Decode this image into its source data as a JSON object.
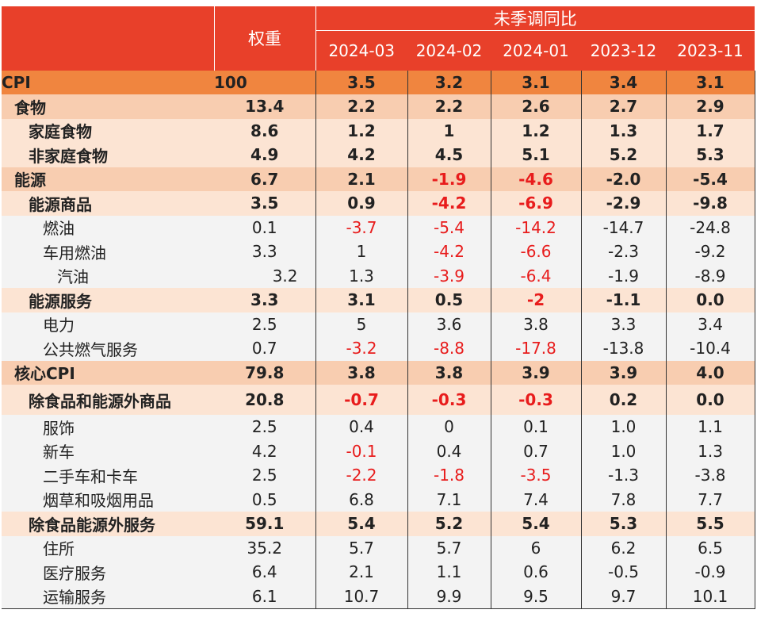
{
  "header": {
    "weight_label": "权重",
    "group_label": "未季调同比",
    "dates": [
      "2024-03",
      "2024-02",
      "2024-01",
      "2023-12",
      "2023-11"
    ]
  },
  "rows": [
    {
      "label": "CPI",
      "level": 0,
      "weight": "100",
      "values": [
        "3.5",
        "3.2",
        "3.1",
        "3.4",
        "3.1"
      ]
    },
    {
      "label": "食物",
      "level": 1,
      "weight": "13.4",
      "values": [
        "2.2",
        "2.2",
        "2.6",
        "2.7",
        "2.9"
      ]
    },
    {
      "label": "家庭食物",
      "level": 2,
      "weight": "8.6",
      "values": [
        "1.2",
        "1",
        "1.2",
        "1.3",
        "1.7"
      ]
    },
    {
      "label": "非家庭食物",
      "level": 2,
      "weight": "4.9",
      "values": [
        "4.2",
        "4.5",
        "5.1",
        "5.2",
        "5.3"
      ]
    },
    {
      "label": "能源",
      "level": 1,
      "weight": "6.7",
      "values": [
        "2.1",
        "-1.9",
        "-4.6",
        "-2.0",
        "-5.4"
      ]
    },
    {
      "label": "能源商品",
      "level": 2,
      "weight": "3.5",
      "values": [
        "0.9",
        "-4.2",
        "-6.9",
        "-2.9",
        "-9.8"
      ]
    },
    {
      "label": "燃油",
      "level": 3,
      "weight": "0.1",
      "values": [
        "-3.7",
        "-5.4",
        "-14.2",
        "-14.7",
        "-24.8"
      ]
    },
    {
      "label": "车用燃油",
      "level": 3,
      "weight": "3.3",
      "values": [
        "1",
        "-4.2",
        "-6.6",
        "-2.3",
        "-9.2"
      ]
    },
    {
      "label": "汽油",
      "level": 4,
      "weight": "3.2",
      "values": [
        "1.3",
        "-3.9",
        "-6.4",
        "-1.9",
        "-8.9"
      ]
    },
    {
      "label": "能源服务",
      "level": 2,
      "weight": "3.3",
      "values": [
        "3.1",
        "0.5",
        "-2",
        "-1.1",
        "0.0"
      ]
    },
    {
      "label": "电力",
      "level": 3,
      "weight": "2.5",
      "values": [
        "5",
        "3.6",
        "3.8",
        "3.3",
        "3.4"
      ]
    },
    {
      "label": "公共燃气服务",
      "level": 3,
      "weight": "0.7",
      "values": [
        "-3.2",
        "-8.8",
        "-17.8",
        "-13.8",
        "-10.4"
      ]
    },
    {
      "label": "核心CPI",
      "level": 1,
      "weight": "79.8",
      "values": [
        "3.8",
        "3.8",
        "3.9",
        "3.9",
        "4.0"
      ]
    },
    {
      "label": "除食品和能源外商品",
      "level": 2,
      "weight": "20.8",
      "values": [
        "-0.7",
        "-0.3",
        "-0.3",
        "0.2",
        "0.0"
      ]
    },
    {
      "label": "服饰",
      "level": 3,
      "weight": "2.5",
      "values": [
        "0.4",
        "0",
        "0.1",
        "1.0",
        "1.1"
      ]
    },
    {
      "label": "新车",
      "level": 3,
      "weight": "4.2",
      "values": [
        "-0.1",
        "0.4",
        "0.7",
        "1.0",
        "1.3"
      ]
    },
    {
      "label": "二手车和卡车",
      "level": 3,
      "weight": "2.5",
      "values": [
        "-2.2",
        "-1.8",
        "-3.5",
        "-1.3",
        "-3.8"
      ]
    },
    {
      "label": "烟草和吸烟用品",
      "level": 3,
      "weight": "0.5",
      "values": [
        "6.8",
        "7.1",
        "7.4",
        "7.8",
        "7.7"
      ]
    },
    {
      "label": "除食品能源外服务",
      "level": 2,
      "weight": "59.1",
      "values": [
        "5.4",
        "5.2",
        "5.4",
        "5.3",
        "5.5"
      ]
    },
    {
      "label": "住所",
      "level": 3,
      "weight": "35.2",
      "values": [
        "5.7",
        "5.7",
        "6",
        "6.2",
        "6.5"
      ]
    },
    {
      "label": "医疗服务",
      "level": 3,
      "weight": "6.4",
      "values": [
        "2.1",
        "1.1",
        "0.6",
        "-0.5",
        "-0.9"
      ]
    },
    {
      "label": "运输服务",
      "level": 3,
      "weight": "6.1",
      "values": [
        "10.7",
        "9.9",
        "9.5",
        "9.7",
        "10.1"
      ]
    }
  ],
  "red_cells": [
    [
      4,
      1
    ],
    [
      4,
      2
    ],
    [
      5,
      1
    ],
    [
      5,
      2
    ],
    [
      6,
      0
    ],
    [
      6,
      1
    ],
    [
      6,
      2
    ],
    [
      7,
      1
    ],
    [
      7,
      2
    ],
    [
      8,
      1
    ],
    [
      8,
      2
    ],
    [
      9,
      2
    ],
    [
      11,
      0
    ],
    [
      11,
      1
    ],
    [
      11,
      2
    ],
    [
      13,
      0
    ],
    [
      13,
      1
    ],
    [
      13,
      2
    ],
    [
      15,
      0
    ],
    [
      16,
      0
    ],
    [
      16,
      1
    ],
    [
      16,
      2
    ]
  ],
  "colors": {
    "header_bg": "#e8402a",
    "cpi_row_bg": "#f0853f",
    "level1_bg": "#f8cdb0",
    "level2_bg": "#fce4d3",
    "level3_bg": "#f3f3f3",
    "negative_text": "#e81c1c"
  }
}
